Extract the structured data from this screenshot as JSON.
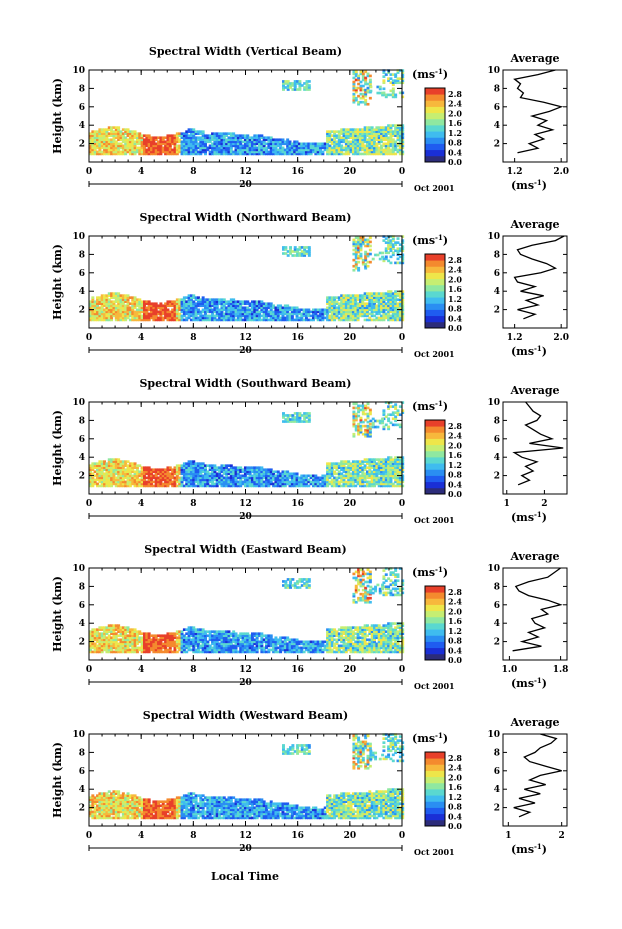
{
  "colorbar": {
    "unit_label": "(ms",
    "unit_exp": "-1",
    "unit_close": ")",
    "ticks": [
      "2.8",
      "2.4",
      "2.0",
      "1.6",
      "1.2",
      "0.8",
      "0.4",
      "0.0"
    ],
    "colors": [
      "#2c2c7a",
      "#1a2fd6",
      "#1f5cf0",
      "#2a8ef2",
      "#3fbcef",
      "#5ad8d0",
      "#8fe8a0",
      "#c6ee72",
      "#eee64a",
      "#f7b83c",
      "#f48a2e",
      "#e8402a"
    ]
  },
  "x_ticks": [
    "0",
    "4",
    "8",
    "12",
    "16",
    "20",
    "0"
  ],
  "date_tick": "20",
  "date_label": "Oct 2001",
  "y_label": "Height (km)",
  "y_ticks": [
    "2",
    "4",
    "6",
    "8",
    "10"
  ],
  "x_label": "Local Time",
  "avg_title": "Average",
  "avg_xlabel": "(ms",
  "avg_xlabel_exp": "-1",
  "avg_xlabel_close": ")",
  "chart_data": [
    {
      "type": "heatmap",
      "title": "Spectral Width (Vertical Beam)",
      "xlim": [
        0,
        24
      ],
      "ylim": [
        0,
        10
      ],
      "profile": {
        "xlim": [
          1.0,
          2.1
        ],
        "x_ticks": [
          "1.2",
          "2.0"
        ],
        "x_tick_values": [
          1.2,
          2.0
        ],
        "heights": [
          1.0,
          1.5,
          2.0,
          2.5,
          3.0,
          3.5,
          4.0,
          4.5,
          5.0,
          5.5,
          6.0,
          6.5,
          7.0,
          7.5,
          8.0,
          8.5,
          9.0,
          9.5,
          10.0
        ],
        "values": [
          1.25,
          1.6,
          1.45,
          1.7,
          1.55,
          1.85,
          1.6,
          1.75,
          1.5,
          1.8,
          2.0,
          1.7,
          1.3,
          1.35,
          1.25,
          1.3,
          1.2,
          1.6,
          1.9
        ]
      }
    },
    {
      "type": "heatmap",
      "title": "Spectral Width (Northward Beam)",
      "xlim": [
        0,
        24
      ],
      "ylim": [
        0,
        10
      ],
      "profile": {
        "xlim": [
          1.0,
          2.1
        ],
        "x_ticks": [
          "1.2",
          "2.0"
        ],
        "x_tick_values": [
          1.2,
          2.0
        ],
        "heights": [
          1.0,
          1.5,
          2.0,
          2.5,
          3.0,
          3.5,
          4.0,
          4.5,
          5.0,
          5.5,
          6.0,
          6.5,
          7.0,
          7.5,
          8.0,
          8.5,
          9.0,
          9.5,
          10.0
        ],
        "values": [
          1.35,
          1.55,
          1.25,
          1.6,
          1.4,
          1.7,
          1.3,
          1.55,
          1.25,
          1.2,
          1.65,
          1.9,
          1.75,
          1.5,
          1.3,
          1.25,
          1.5,
          1.9,
          2.05
        ]
      }
    },
    {
      "type": "heatmap",
      "title": "Spectral Width (Southward Beam)",
      "xlim": [
        0,
        24
      ],
      "ylim": [
        0,
        10
      ],
      "profile": {
        "xlim": [
          0.9,
          2.6
        ],
        "x_ticks": [
          "1",
          "2"
        ],
        "x_tick_values": [
          1,
          2
        ],
        "heights": [
          1.0,
          1.5,
          2.0,
          2.5,
          3.0,
          3.5,
          4.0,
          4.5,
          5.0,
          5.5,
          6.0,
          6.5,
          7.0,
          7.5,
          8.0,
          8.5,
          9.0,
          9.5,
          10.0
        ],
        "values": [
          1.3,
          1.6,
          1.4,
          1.7,
          1.5,
          1.8,
          1.4,
          1.2,
          2.5,
          1.6,
          2.2,
          1.9,
          1.7,
          1.5,
          1.8,
          1.9,
          1.7,
          1.6,
          1.5
        ]
      }
    },
    {
      "type": "heatmap",
      "title": "Spectral Width (Eastward Beam)",
      "xlim": [
        0,
        24
      ],
      "ylim": [
        0,
        10
      ],
      "profile": {
        "xlim": [
          0.9,
          1.9
        ],
        "x_ticks": [
          "1.0",
          "1.8"
        ],
        "x_tick_values": [
          1.0,
          1.8
        ],
        "heights": [
          1.0,
          1.5,
          2.0,
          2.5,
          3.0,
          3.5,
          4.0,
          4.5,
          5.0,
          5.5,
          6.0,
          6.5,
          7.0,
          7.5,
          8.0,
          8.5,
          9.0,
          9.5,
          10.0
        ],
        "values": [
          1.05,
          1.5,
          1.2,
          1.45,
          1.3,
          1.55,
          1.4,
          1.35,
          1.6,
          1.5,
          1.8,
          1.6,
          1.3,
          1.15,
          1.1,
          1.3,
          1.6,
          1.7,
          1.8
        ]
      }
    },
    {
      "type": "heatmap",
      "title": "Spectral Width (Westward Beam)",
      "xlim": [
        0,
        24
      ],
      "ylim": [
        0,
        10
      ],
      "profile": {
        "xlim": [
          0.9,
          2.1
        ],
        "x_ticks": [
          "1",
          "2"
        ],
        "x_tick_values": [
          1,
          2
        ],
        "heights": [
          1.0,
          1.5,
          2.0,
          2.5,
          3.0,
          3.5,
          4.0,
          4.5,
          5.0,
          5.5,
          6.0,
          6.5,
          7.0,
          7.5,
          8.0,
          8.5,
          9.0,
          9.5,
          10.0
        ],
        "values": [
          1.2,
          1.4,
          1.1,
          1.5,
          1.2,
          1.6,
          1.3,
          1.7,
          1.4,
          1.6,
          2.0,
          1.7,
          1.4,
          1.3,
          1.5,
          1.6,
          1.8,
          1.9,
          1.6
        ]
      }
    }
  ]
}
